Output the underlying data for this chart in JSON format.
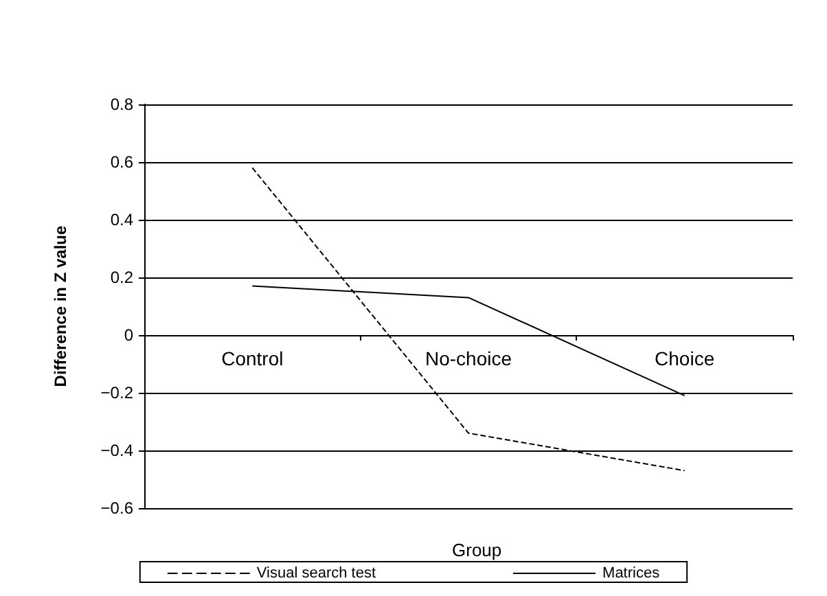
{
  "chart_data": {
    "type": "line",
    "xlabel": "Group",
    "ylabel": "Difference in Z value",
    "categories": [
      "Control",
      "No-choice",
      "Choice"
    ],
    "series": [
      {
        "name": "Visual search test",
        "color": "#000000",
        "values": [
          0.58,
          -0.34,
          -0.47
        ],
        "line_style": "dashed"
      },
      {
        "name": "Matrices",
        "color": "#000000",
        "values": [
          0.17,
          0.13,
          -0.21
        ],
        "line_style": "solid"
      }
    ],
    "ylim": [
      -0.6,
      0.8
    ],
    "yticks": [
      {
        "value": -0.6,
        "label": "−0.6"
      },
      {
        "value": -0.4,
        "label": "−0.4"
      },
      {
        "value": -0.2,
        "label": "−0.2"
      },
      0,
      0.2,
      0.4,
      0.6,
      0.8
    ],
    "grid": "y",
    "legend": "bottom",
    "marker": "none"
  }
}
